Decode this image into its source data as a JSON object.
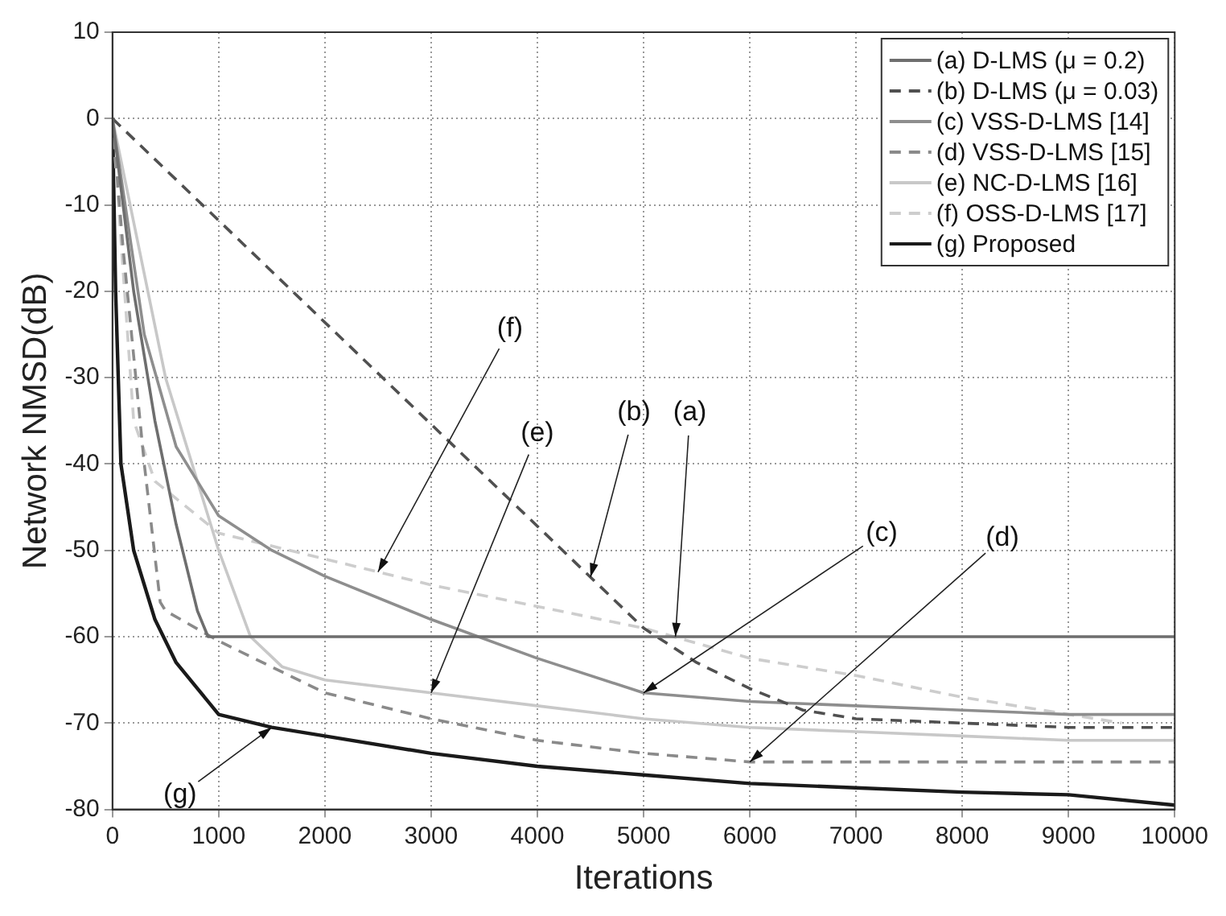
{
  "chart_data": {
    "type": "line",
    "xlabel": "Iterations",
    "ylabel": "Network NMSD(dB)",
    "xlim": [
      0,
      10000
    ],
    "ylim": [
      -80,
      10
    ],
    "xticks": [
      0,
      1000,
      2000,
      3000,
      4000,
      5000,
      6000,
      7000,
      8000,
      9000,
      10000
    ],
    "yticks": [
      -80,
      -70,
      -60,
      -50,
      -40,
      -30,
      -20,
      -10,
      0,
      10
    ],
    "grid": true,
    "legend": "top right",
    "marker": "none",
    "series": [
      {
        "name": "(a) D-LMS (μ = 0.2)",
        "color": "#6e6e6e",
        "line_style": "solid",
        "x": [
          0,
          100,
          200,
          400,
          600,
          800,
          900,
          1000,
          2000,
          3000,
          4000,
          5000,
          6000,
          7000,
          8000,
          9000,
          10000
        ],
        "values": [
          0,
          -10,
          -20,
          -35,
          -47,
          -57,
          -60,
          -60,
          -60,
          -60,
          -60,
          -60,
          -60,
          -60,
          -60,
          -60,
          -60
        ]
      },
      {
        "name": "(b) D-LMS (μ = 0.03)",
        "color": "#505050",
        "line_style": "dashed",
        "x": [
          0,
          5000,
          5500,
          6000,
          6500,
          7000,
          8000,
          9000,
          10000
        ],
        "values": [
          0,
          -59,
          -63,
          -66,
          -68.5,
          -69.5,
          -70,
          -70.5,
          -70.5
        ]
      },
      {
        "name": "(c) VSS-D-LMS [14]",
        "color": "#8e8e8e",
        "line_style": "solid",
        "x": [
          0,
          300,
          600,
          1000,
          1500,
          2000,
          3000,
          4000,
          5000,
          6000,
          7000,
          8000,
          9000,
          10000
        ],
        "values": [
          0,
          -25,
          -38,
          -46,
          -50,
          -53,
          -58,
          -62.5,
          -66.5,
          -67.5,
          -68,
          -68.5,
          -69,
          -69
        ]
      },
      {
        "name": "(d) VSS-D-LMS [15]",
        "color": "#8a8a8a",
        "line_style": "dashed",
        "x": [
          0,
          100,
          300,
          450,
          500,
          1000,
          2000,
          3000,
          4000,
          5000,
          6000,
          7000,
          8000,
          9000,
          10000
        ],
        "values": [
          0,
          -15,
          -40,
          -56,
          -57,
          -60.5,
          -66.5,
          -69.5,
          -72,
          -73.5,
          -74.5,
          -74.5,
          -74.5,
          -74.5,
          -74.5
        ]
      },
      {
        "name": "(e) NC-D-LMS [16]",
        "color": "#c8c8c8",
        "line_style": "solid",
        "x": [
          0,
          500,
          1000,
          1300,
          1600,
          2000,
          3000,
          4000,
          5000,
          6000,
          7000,
          8000,
          9000,
          10000
        ],
        "values": [
          0,
          -30,
          -50,
          -60,
          -63.5,
          -65,
          -66.5,
          -68,
          -69.5,
          -70.5,
          -71,
          -71.5,
          -72,
          -72
        ]
      },
      {
        "name": "(f) OSS-D-LMS [17]",
        "color": "#cdcdcd",
        "line_style": "dashed",
        "x": [
          0,
          200,
          400,
          1000,
          2000,
          3000,
          4000,
          5000,
          6000,
          7000,
          8000,
          9000,
          9500
        ],
        "values": [
          0,
          -35,
          -42,
          -48,
          -51,
          -54,
          -56.5,
          -59,
          -62.5,
          -64.5,
          -67,
          -69,
          -70
        ]
      },
      {
        "name": "(g) Proposed",
        "color": "#1a1a1a",
        "line_style": "solid",
        "x": [
          0,
          30,
          80,
          200,
          400,
          600,
          800,
          1000,
          1500,
          2000,
          3000,
          4000,
          5000,
          6000,
          7000,
          8000,
          9000,
          10000
        ],
        "values": [
          0,
          -20,
          -40,
          -50,
          -58,
          -63,
          -66,
          -69,
          -70.5,
          -71.5,
          -73.5,
          -75,
          -76,
          -77,
          -77.5,
          -78,
          -78.3,
          -79.5
        ]
      }
    ],
    "annotations": [
      {
        "text": "(a)",
        "x": 5300,
        "y": -60
      },
      {
        "text": "(b)",
        "x": 4500,
        "y": -53.1
      },
      {
        "text": "(c)",
        "x": 5000,
        "y": -66.5
      },
      {
        "text": "(d)",
        "x": 6000,
        "y": -74.5
      },
      {
        "text": "(e)",
        "x": 3000,
        "y": -66.5
      },
      {
        "text": "(f)",
        "x": 2500,
        "y": -52.5
      },
      {
        "text": "(g)",
        "x": 1500,
        "y": -70.5
      }
    ]
  }
}
